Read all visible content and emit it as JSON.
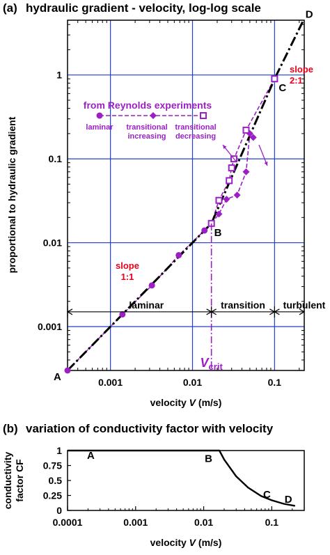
{
  "chart_data": [
    {
      "type": "line",
      "panel": "(a)",
      "title": "hydraulic gradient - velocity, log-log scale",
      "xlabel_prefix": "velocity ",
      "xlabel_var": "V",
      "xlabel_suffix": " (m/s)",
      "ylabel": "proportional to hydraulic gradient",
      "x_scale": "log",
      "y_scale": "log",
      "xlim": [
        0.0003,
        0.23
      ],
      "ylim": [
        0.0003,
        4.5
      ],
      "grid": true,
      "x_ticks": [
        0.001,
        0.01,
        0.1
      ],
      "x_tick_labels": [
        "0.001",
        "0.01",
        "0.1"
      ],
      "y_ticks": [
        0.001,
        0.01,
        0.1,
        1
      ],
      "y_tick_labels": [
        "0.001",
        "0.01",
        "0.1",
        "1"
      ],
      "series": [
        {
          "kind": "model",
          "color": "#000000",
          "x": [
            0.0003,
            0.017,
            0.1,
            0.22
          ],
          "y": [
            0.0003,
            0.017,
            0.9,
            4.3
          ]
        },
        {
          "kind": "laminar",
          "color": "#9b1fc4",
          "marker": "circle",
          "x": [
            0.0003,
            0.0014,
            0.0032,
            0.0068,
            0.014
          ],
          "y": [
            0.0003,
            0.0014,
            0.0031,
            0.0071,
            0.014
          ]
        },
        {
          "kind": "transitional increasing",
          "color": "#9b1fc4",
          "marker": "diamond",
          "x": [
            0.017,
            0.021,
            0.026,
            0.035,
            0.045,
            0.05,
            0.055
          ],
          "y": [
            0.017,
            0.022,
            0.033,
            0.037,
            0.07,
            0.2,
            0.18
          ]
        },
        {
          "kind": "transitional decreasing",
          "color": "#9b1fc4",
          "marker": "square",
          "x": [
            0.1,
            0.045,
            0.032,
            0.03,
            0.028,
            0.021,
            0.017
          ],
          "y": [
            0.9,
            0.22,
            0.1,
            0.078,
            0.055,
            0.032,
            0.017
          ]
        }
      ],
      "points": [
        {
          "label": "A",
          "x": 0.0003,
          "y": 0.0003
        },
        {
          "label": "B",
          "x": 0.017,
          "y": 0.017
        },
        {
          "label": "C",
          "x": 0.1,
          "y": 0.9
        },
        {
          "label": "D",
          "x": 0.22,
          "y": 4.3
        }
      ],
      "annotations": {
        "slope_2_line1": "slope",
        "slope_2_line2": "2:1",
        "slope_1_line1": "slope",
        "slope_1_line2": "1:1",
        "reynolds_title": "from Reynolds experiments",
        "legend_laminar": "laminar",
        "legend_incr_1": "transitional",
        "legend_incr_2": "increasing",
        "legend_decr_1": "transitional",
        "legend_decr_2": "decreasing",
        "regime_laminar": "laminar",
        "regime_transition": "transition",
        "regime_turbulent": "turbulent",
        "vcrit_main": "V",
        "vcrit_sub": "crit",
        "v_crit": 0.017,
        "v_turbulent": 0.1,
        "regime_arrow_y": 0.0015
      },
      "colors": {
        "accent": "#9b1fc4",
        "slope": "#e8001c",
        "grid": "#1f3fd1",
        "model": "#000000"
      }
    },
    {
      "type": "line",
      "panel": "(b)",
      "title": "variation of conductivity factor with velocity",
      "xlabel_prefix": "velocity ",
      "xlabel_var": "V",
      "xlabel_suffix": " (m/s)",
      "ylabel_line1": "conductivity",
      "ylabel_line2": "factor CF",
      "x_scale": "log",
      "xlim": [
        0.0001,
        0.3
      ],
      "ylim": [
        0,
        1
      ],
      "grid": false,
      "x_ticks": [
        0.0001,
        0.001,
        0.01,
        0.1
      ],
      "x_tick_labels": [
        "0.0001",
        "0.001",
        "0.01",
        "0.1"
      ],
      "y_ticks": [
        0,
        0.25,
        0.5,
        0.75,
        1
      ],
      "y_tick_labels": [
        "0",
        "0.25",
        "0.5",
        "0.75",
        "1"
      ],
      "series": [
        {
          "kind": "CF",
          "color": "#000000",
          "x": [
            0.0001,
            0.017,
            0.02,
            0.03,
            0.045,
            0.07,
            0.1,
            0.15,
            0.22
          ],
          "y": [
            1,
            1,
            0.85,
            0.57,
            0.38,
            0.24,
            0.17,
            0.11,
            0.077
          ]
        }
      ],
      "points": [
        {
          "label": "A",
          "x": 0.00022,
          "y": 0.93
        },
        {
          "label": "B",
          "x": 0.0118,
          "y": 0.88
        },
        {
          "label": "C",
          "x": 0.085,
          "y": 0.28
        },
        {
          "label": "D",
          "x": 0.175,
          "y": 0.2
        }
      ]
    }
  ]
}
